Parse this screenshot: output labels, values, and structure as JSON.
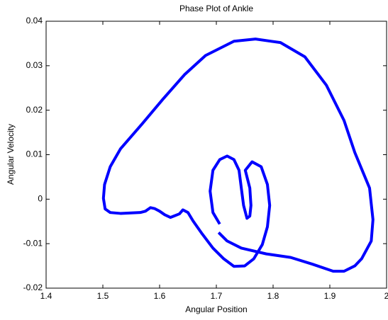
{
  "chart_data": {
    "type": "line",
    "title": "Phase Plot of Ankle",
    "xlabel": "Angular Position",
    "ylabel": "Angular Velocity",
    "x": [
      1.706,
      1.694,
      1.689,
      1.694,
      1.706,
      1.719,
      1.731,
      1.74,
      1.744,
      1.748,
      1.754,
      1.759,
      1.761,
      1.759,
      1.751,
      1.763,
      1.779,
      1.79,
      1.794,
      1.79,
      1.781,
      1.766,
      1.75,
      1.731,
      1.713,
      1.694,
      1.675,
      1.659,
      1.65,
      1.641,
      1.635,
      1.625,
      1.619,
      1.609,
      1.6,
      1.591,
      1.584,
      1.575,
      1.566,
      1.531,
      1.513,
      1.504,
      1.501,
      1.503,
      1.513,
      1.531,
      1.569,
      1.606,
      1.644,
      1.681,
      1.731,
      1.769,
      1.813,
      1.856,
      1.894,
      1.925,
      1.944,
      1.97,
      1.976,
      1.973,
      1.956,
      1.944,
      1.925,
      1.906,
      1.869,
      1.831,
      1.788,
      1.744,
      1.719,
      1.704
    ],
    "values": [
      -0.0056,
      -0.003,
      0.0018,
      0.0065,
      0.0089,
      0.0097,
      0.0089,
      0.0065,
      0.0025,
      -0.0014,
      -0.0043,
      -0.0038,
      -0.0014,
      0.0025,
      0.0065,
      0.0084,
      0.0073,
      0.0033,
      -0.0014,
      -0.0062,
      -0.0102,
      -0.0134,
      -0.015,
      -0.0151,
      -0.0134,
      -0.011,
      -0.0078,
      -0.0049,
      -0.003,
      -0.0024,
      -0.0033,
      -0.0038,
      -0.0041,
      -0.0035,
      -0.0027,
      -0.0021,
      -0.0019,
      -0.0027,
      -0.003,
      -0.0032,
      -0.003,
      -0.0022,
      0.0002,
      0.0033,
      0.0073,
      0.0113,
      0.0169,
      0.0225,
      0.028,
      0.0323,
      0.0355,
      0.036,
      0.0352,
      0.032,
      0.0256,
      0.0177,
      0.0105,
      0.0025,
      -0.0046,
      -0.0094,
      -0.0134,
      -0.015,
      -0.0162,
      -0.0162,
      -0.0146,
      -0.0131,
      -0.0123,
      -0.011,
      -0.0094,
      -0.0075
    ],
    "color": "#0000ff",
    "xlim": [
      1.4,
      2
    ],
    "xticks": [
      1.4,
      1.5,
      1.6,
      1.7,
      1.8,
      1.9,
      2
    ],
    "ylim": [
      -0.02,
      0.04
    ],
    "yticks": [
      -0.02,
      -0.01,
      0,
      0.01,
      0.02,
      0.03,
      0.04
    ]
  }
}
